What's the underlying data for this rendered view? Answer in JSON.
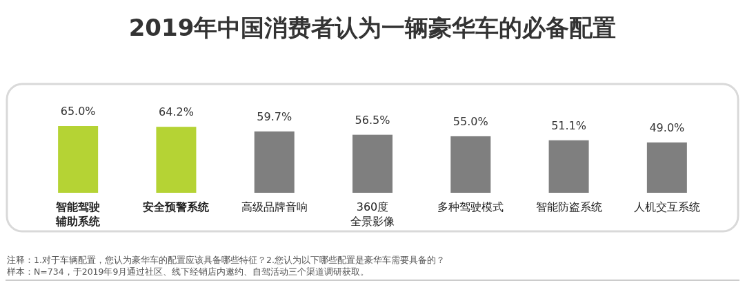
{
  "chart_data": {
    "type": "bar",
    "title": "2019年中国消费者认为一辆豪华车的必备配置",
    "categories": [
      "智能驾驶辅助系统",
      "安全预警系统",
      "高级品牌音响",
      "360度全景影像",
      "多种驾驶模式",
      "智能防盗系统",
      "人机交互系统"
    ],
    "values": [
      65.0,
      64.2,
      59.7,
      56.5,
      55.0,
      51.1,
      49.0
    ],
    "colors": [
      "#b5d334",
      "#b5d334",
      "#7f7f7f",
      "#7f7f7f",
      "#7f7f7f",
      "#7f7f7f",
      "#7f7f7f"
    ],
    "value_labels": [
      "65.0%",
      "64.2%",
      "59.7%",
      "56.5%",
      "55.0%",
      "51.1%",
      "49.0%"
    ],
    "annotations": [
      "注释：1.对于车辆配置，您认为豪华车的配置应该具备哪些特征？2.您认为以下哪些配置是豪华车需要具备的？",
      "样本：N=734，于2019年9月通过社区、线下经销店内邀约、自驾活动三个渠道调研获取。"
    ]
  }
}
